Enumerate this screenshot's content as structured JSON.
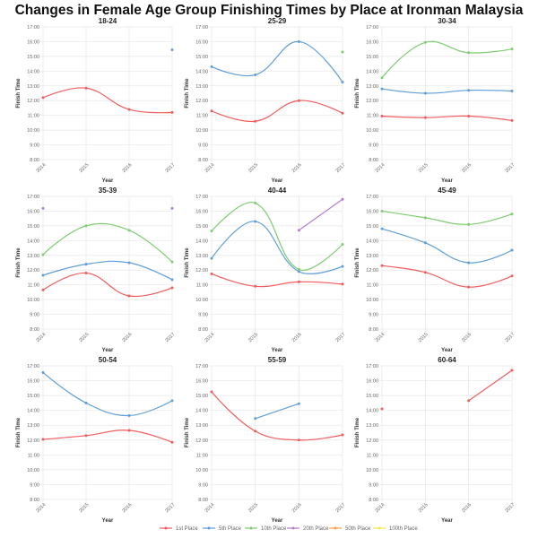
{
  "title": "Changes in Female Age Group Finishing Times by Place at Ironman Malaysia",
  "legend": [
    {
      "name": "1st Place",
      "color": "#f15c5e"
    },
    {
      "name": "5th Place",
      "color": "#5f9ed8"
    },
    {
      "name": "10th Place",
      "color": "#7fcc72"
    },
    {
      "name": "20th Place",
      "color": "#b57ed0"
    },
    {
      "name": "50th Place",
      "color": "#ffa040"
    },
    {
      "name": "100th Place",
      "color": "#f2e84a"
    }
  ],
  "chart_data": [
    {
      "type": "line",
      "title": "18-24",
      "xlabel": "Year",
      "ylabel": "Finish Time",
      "categories": [
        "2014",
        "2015",
        "2016",
        "2017"
      ],
      "yticks": [
        "8:00",
        "9:00",
        "10:00",
        "11:00",
        "12:00",
        "13:00",
        "14:00",
        "15:00",
        "16:00",
        "17:00"
      ],
      "ylim": [
        "8:00",
        "17:00"
      ],
      "grid": true,
      "series": [
        {
          "name": "1st Place",
          "values": [
            "12:12",
            "12:51",
            "11:24",
            "11:12"
          ]
        },
        {
          "name": "5th Place",
          "values": [
            null,
            null,
            null,
            "15:27"
          ]
        }
      ]
    },
    {
      "type": "line",
      "title": "25-29",
      "xlabel": "Year",
      "ylabel": "Finish Time",
      "categories": [
        "2014",
        "2015",
        "2016",
        "2017"
      ],
      "yticks": [
        "8:00",
        "9:00",
        "10:00",
        "11:00",
        "12:00",
        "13:00",
        "14:00",
        "15:00",
        "16:00",
        "17:00"
      ],
      "ylim": [
        "8:00",
        "17:00"
      ],
      "grid": true,
      "series": [
        {
          "name": "1st Place",
          "values": [
            "11:18",
            "10:36",
            "12:00",
            "11:09"
          ]
        },
        {
          "name": "5th Place",
          "values": [
            "14:18",
            "13:45",
            "16:00",
            "13:15"
          ]
        },
        {
          "name": "10th Place",
          "values": [
            null,
            null,
            null,
            "15:18"
          ]
        }
      ]
    },
    {
      "type": "line",
      "title": "30-34",
      "xlabel": "Year",
      "ylabel": "Finish Time",
      "categories": [
        "2014",
        "2015",
        "2016",
        "2017"
      ],
      "yticks": [
        "8:00",
        "9:00",
        "10:00",
        "11:00",
        "12:00",
        "13:00",
        "14:00",
        "15:00",
        "16:00",
        "17:00"
      ],
      "ylim": [
        "8:00",
        "17:00"
      ],
      "grid": true,
      "series": [
        {
          "name": "1st Place",
          "values": [
            "10:57",
            "10:51",
            "10:57",
            "10:39"
          ]
        },
        {
          "name": "5th Place",
          "values": [
            "12:48",
            "12:30",
            "12:42",
            "12:39"
          ]
        },
        {
          "name": "10th Place",
          "values": [
            "13:33",
            "15:57",
            "15:15",
            "15:30"
          ]
        }
      ]
    },
    {
      "type": "line",
      "title": "35-39",
      "xlabel": "Year",
      "ylabel": "Finish Time",
      "categories": [
        "2014",
        "2015",
        "2016",
        "2017"
      ],
      "yticks": [
        "8:00",
        "9:00",
        "10:00",
        "11:00",
        "12:00",
        "13:00",
        "14:00",
        "15:00",
        "16:00",
        "17:00"
      ],
      "ylim": [
        "8:00",
        "17:00"
      ],
      "grid": true,
      "series": [
        {
          "name": "1st Place",
          "values": [
            "10:39",
            "11:48",
            "10:15",
            "10:48"
          ]
        },
        {
          "name": "5th Place",
          "values": [
            "11:39",
            "12:24",
            "12:30",
            "11:21"
          ]
        },
        {
          "name": "10th Place",
          "values": [
            "13:03",
            "15:00",
            "14:42",
            "12:33"
          ]
        },
        {
          "name": "20th Place",
          "values": [
            "16:11",
            null,
            null,
            "16:11"
          ]
        }
      ]
    },
    {
      "type": "line",
      "title": "40-44",
      "xlabel": "Year",
      "ylabel": "Finish Time",
      "categories": [
        "2014",
        "2015",
        "2016",
        "2017"
      ],
      "yticks": [
        "8:00",
        "9:00",
        "10:00",
        "11:00",
        "12:00",
        "13:00",
        "14:00",
        "15:00",
        "16:00",
        "17:00"
      ],
      "ylim": [
        "8:00",
        "17:00"
      ],
      "grid": true,
      "series": [
        {
          "name": "1st Place",
          "values": [
            "11:45",
            "10:54",
            "11:12",
            "11:03"
          ]
        },
        {
          "name": "5th Place",
          "values": [
            "12:48",
            "15:18",
            "11:54",
            "12:15"
          ]
        },
        {
          "name": "10th Place",
          "values": [
            "14:39",
            "16:33",
            "12:03",
            "13:45"
          ]
        },
        {
          "name": "20th Place",
          "values": [
            null,
            null,
            "14:42",
            "16:48"
          ]
        }
      ]
    },
    {
      "type": "line",
      "title": "45-49",
      "xlabel": "Year",
      "ylabel": "Finish Time",
      "categories": [
        "2014",
        "2015",
        "2016",
        "2017"
      ],
      "yticks": [
        "8:00",
        "9:00",
        "10:00",
        "11:00",
        "12:00",
        "13:00",
        "14:00",
        "15:00",
        "16:00",
        "17:00"
      ],
      "ylim": [
        "8:00",
        "17:00"
      ],
      "grid": true,
      "series": [
        {
          "name": "1st Place",
          "values": [
            "12:18",
            "11:51",
            "10:51",
            "11:36"
          ]
        },
        {
          "name": "5th Place",
          "values": [
            "14:48",
            "13:51",
            "12:30",
            "13:21"
          ]
        },
        {
          "name": "10th Place",
          "values": [
            "16:00",
            "15:33",
            "15:06",
            "15:48"
          ]
        }
      ]
    },
    {
      "type": "line",
      "title": "50-54",
      "xlabel": "Year",
      "ylabel": "Finish Time",
      "categories": [
        "2014",
        "2015",
        "2016",
        "2017"
      ],
      "yticks": [
        "8:00",
        "9:00",
        "10:00",
        "11:00",
        "12:00",
        "13:00",
        "14:00",
        "15:00",
        "16:00",
        "17:00"
      ],
      "ylim": [
        "8:00",
        "17:00"
      ],
      "grid": true,
      "series": [
        {
          "name": "1st Place",
          "values": [
            "12:03",
            "12:18",
            "12:39",
            "11:51"
          ]
        },
        {
          "name": "5th Place",
          "values": [
            "16:33",
            "14:30",
            "13:39",
            "14:39"
          ]
        }
      ]
    },
    {
      "type": "line",
      "title": "55-59",
      "xlabel": "Year",
      "ylabel": "Finish Time",
      "categories": [
        "2014",
        "2015",
        "2016",
        "2017"
      ],
      "yticks": [
        "8:00",
        "9:00",
        "10:00",
        "11:00",
        "12:00",
        "13:00",
        "14:00",
        "15:00",
        "16:00",
        "17:00"
      ],
      "ylim": [
        "8:00",
        "17:00"
      ],
      "grid": true,
      "series": [
        {
          "name": "1st Place",
          "values": [
            "15:15",
            "12:36",
            "12:00",
            "12:21"
          ]
        },
        {
          "name": "5th Place",
          "values": [
            null,
            "13:27",
            "14:27",
            null
          ]
        }
      ]
    },
    {
      "type": "line",
      "title": "60-64",
      "xlabel": "Year",
      "ylabel": "Finish Time",
      "categories": [
        "2014",
        "2015",
        "2016",
        "2017"
      ],
      "yticks": [
        "8:00",
        "9:00",
        "10:00",
        "11:00",
        "12:00",
        "13:00",
        "14:00",
        "15:00",
        "16:00",
        "17:00"
      ],
      "ylim": [
        "8:00",
        "17:00"
      ],
      "grid": true,
      "series": [
        {
          "name": "1st Place",
          "values": [
            "14:06",
            null,
            "14:39",
            "16:42"
          ]
        }
      ]
    }
  ]
}
